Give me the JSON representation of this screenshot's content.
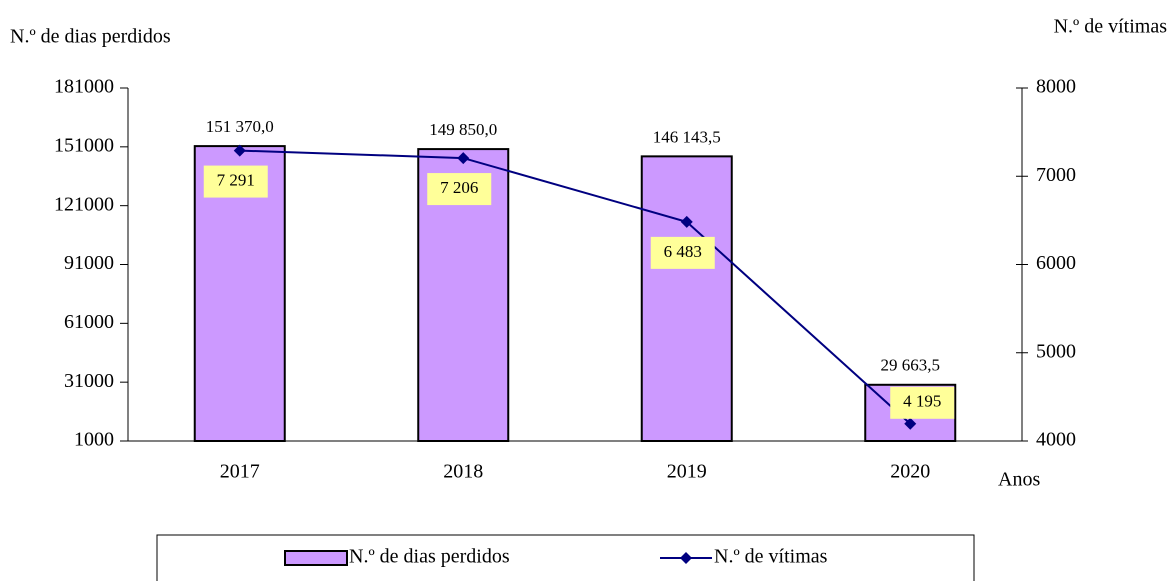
{
  "chart_data": {
    "type": "bar_line",
    "y_label": "N.º de dias perdidos",
    "y2_label": "N.º de vítimas",
    "x_label": "Anos",
    "categories": [
      "2017",
      "2018",
      "2019",
      "2020"
    ],
    "series": [
      {
        "name": "N.º de dias perdidos",
        "type": "bar",
        "color": "#cc99ff",
        "values": [
          151370.0,
          149850.0,
          146143.5,
          29663.5
        ],
        "value_labels": [
          "151 370,0",
          "149 850,0",
          "146 143,5",
          "29 663,5"
        ]
      },
      {
        "name": "N.º de vítimas",
        "type": "line",
        "axis": "y2",
        "color": "#000080",
        "values": [
          7291,
          7206,
          6483,
          4195
        ],
        "value_labels": [
          "7 291",
          "7 206",
          "6 483",
          "4 195"
        ]
      }
    ],
    "ylim": [
      1000,
      181000
    ],
    "yticks": [
      1000,
      31000,
      61000,
      91000,
      121000,
      151000,
      181000
    ],
    "y2lim": [
      4000,
      8000
    ],
    "y2ticks": [
      4000,
      5000,
      6000,
      7000,
      8000
    ],
    "legend": "bottom"
  }
}
